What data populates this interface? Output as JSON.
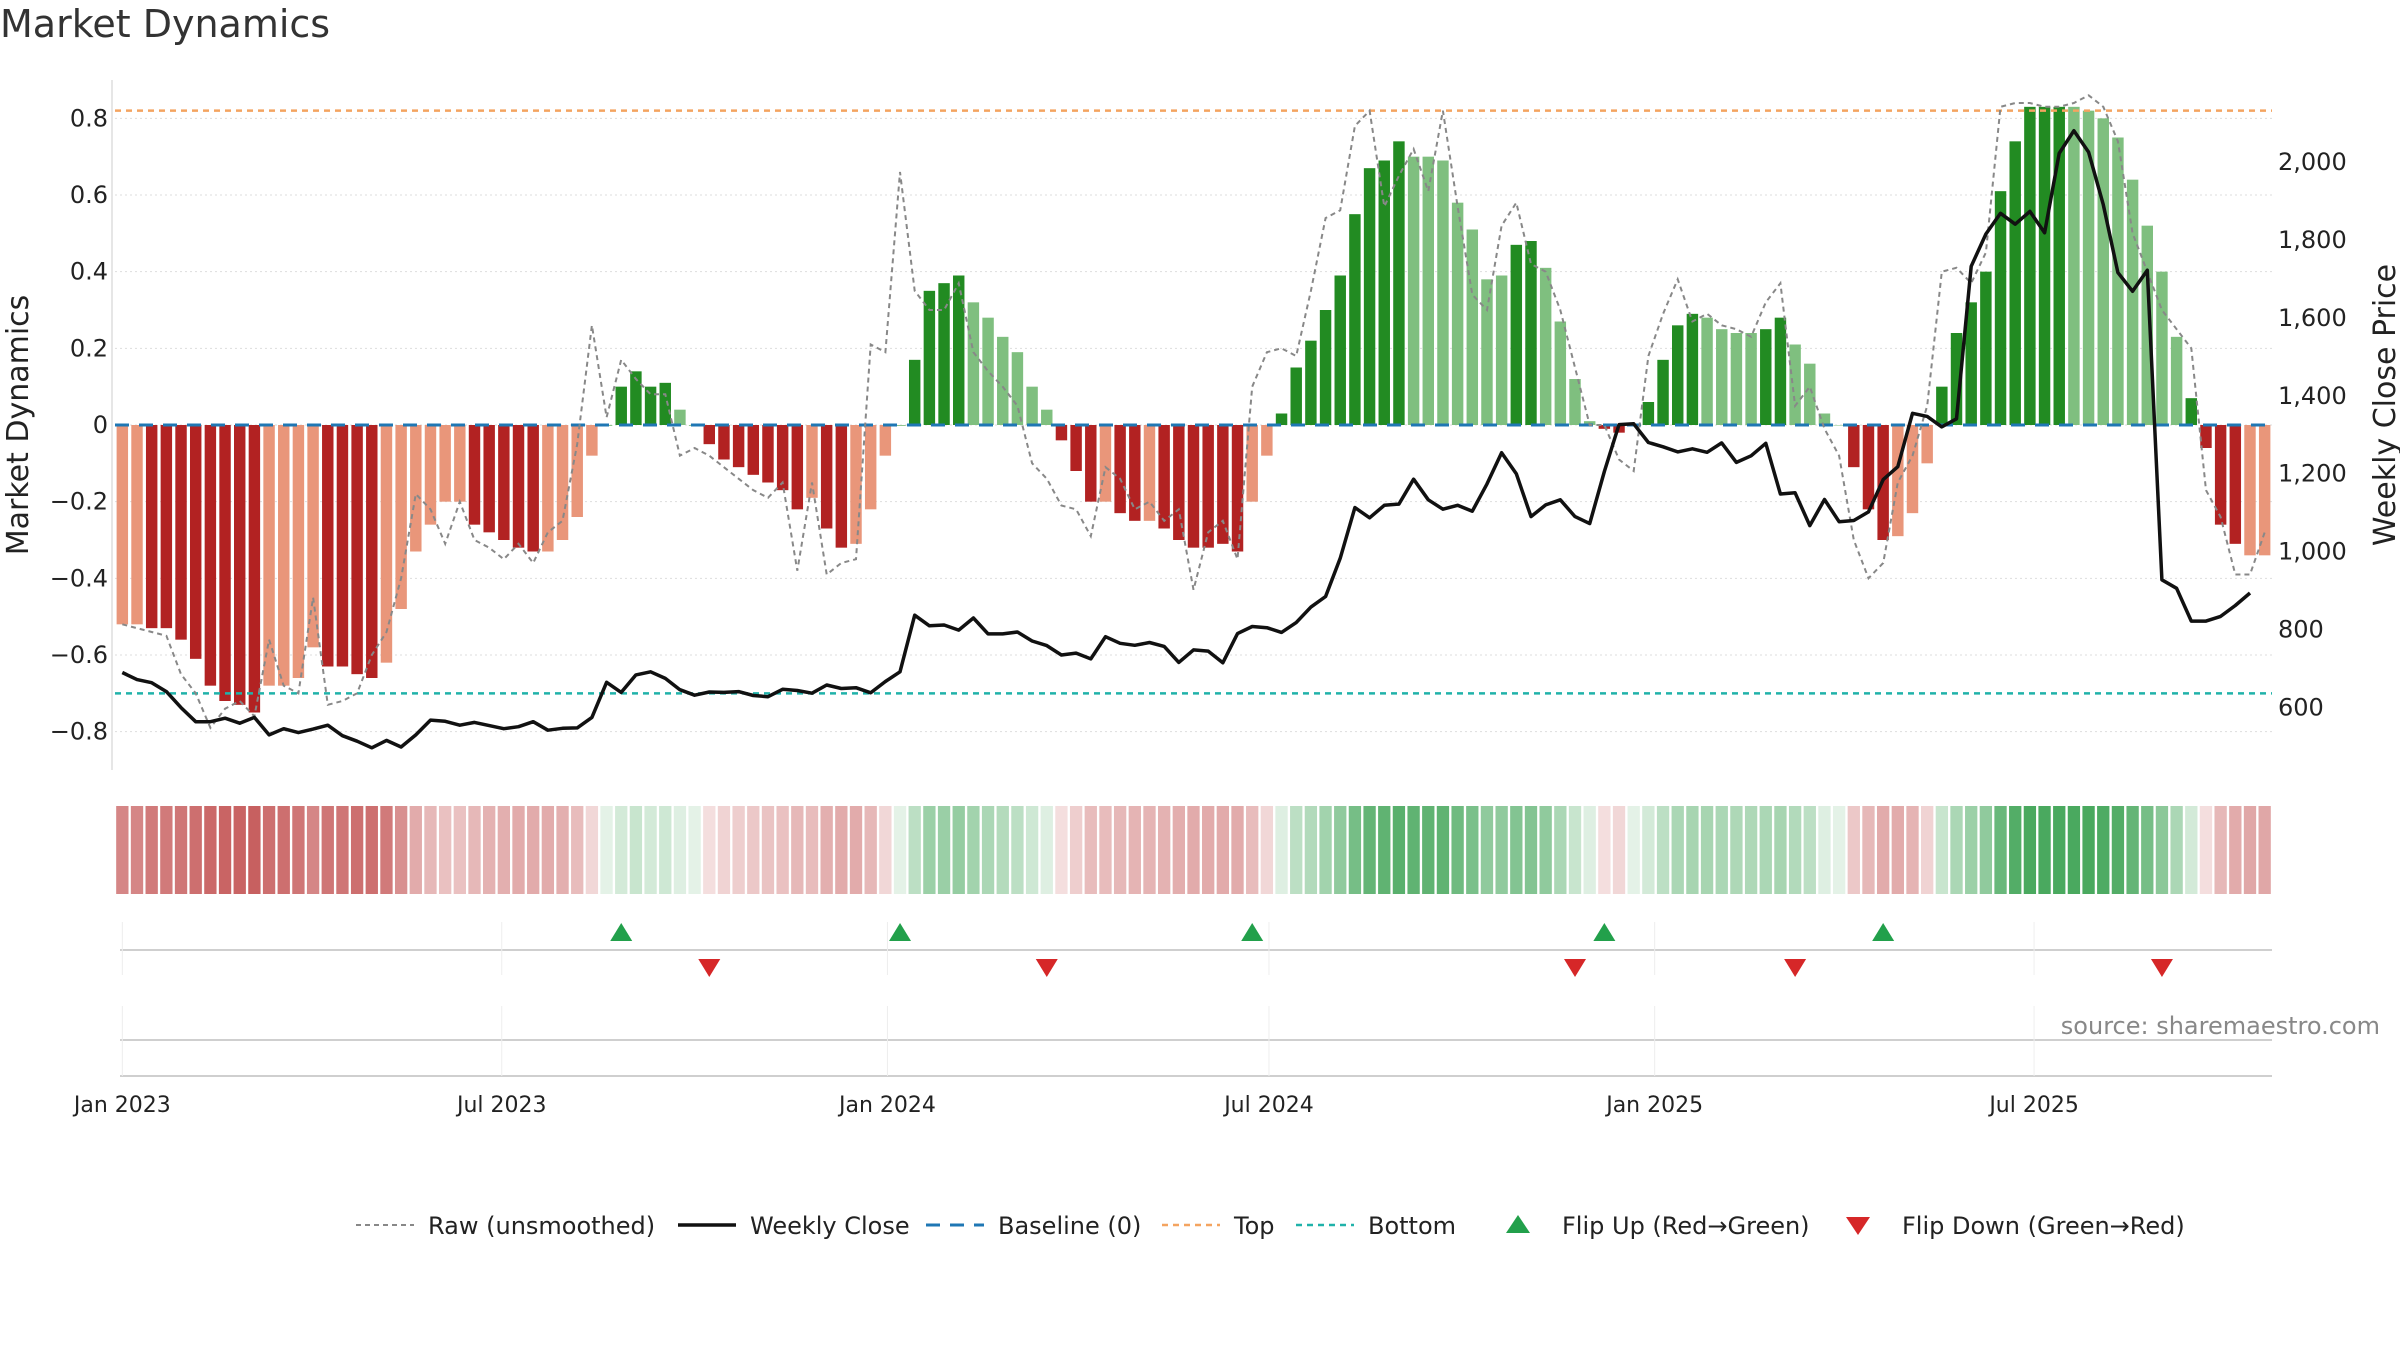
{
  "title": "Market Dynamics",
  "source": "source: sharemaestro.com",
  "colors": {
    "strong_green": "#228b22",
    "weak_green": "#7fbf7f",
    "strong_red": "#b22222",
    "weak_red": "#e9967a",
    "raw": "#888888",
    "close": "#111111",
    "baseline": "#1f77b4",
    "top": "#f4a460",
    "bottom": "#20b2aa",
    "flip_up": "#22a04b",
    "flip_down": "#d62728"
  },
  "chart_data": {
    "type": "bar",
    "title": "Market Dynamics",
    "ylabel": "Market Dynamics",
    "y2label": "Weekly Close Price",
    "ylim": [
      -0.9,
      0.9
    ],
    "y2lim": [
      440,
      2210
    ],
    "yticks": [
      "−0.8",
      "−0.6",
      "−0.4",
      "−0.2",
      "0",
      "0.2",
      "0.4",
      "0.6",
      "0.8"
    ],
    "y2ticks": [
      "600",
      "800",
      "1,000",
      "1,200",
      "1,400",
      "1,600",
      "1,800",
      "2,000"
    ],
    "xticks": [
      "Jan 2023",
      "Jul 2023",
      "Jan 2024",
      "Jul 2024",
      "Jan 2025",
      "Jul 2025"
    ],
    "top_level": 0.82,
    "bottom_level": -0.7,
    "baseline": 0,
    "weeks_start": "2023-01-01",
    "bar_values": [
      -0.52,
      -0.52,
      -0.53,
      -0.53,
      -0.56,
      -0.61,
      -0.68,
      -0.72,
      -0.73,
      -0.75,
      -0.68,
      -0.68,
      -0.66,
      -0.58,
      -0.63,
      -0.63,
      -0.65,
      -0.66,
      -0.62,
      -0.48,
      -0.33,
      -0.26,
      -0.2,
      -0.2,
      -0.26,
      -0.28,
      -0.3,
      -0.32,
      -0.33,
      -0.33,
      -0.3,
      -0.24,
      -0.08,
      0.0,
      0.1,
      0.14,
      0.1,
      0.11,
      0.04,
      0.0,
      -0.05,
      -0.09,
      -0.11,
      -0.13,
      -0.15,
      -0.17,
      -0.22,
      -0.19,
      -0.27,
      -0.32,
      -0.31,
      -0.22,
      -0.08,
      0.0,
      0.17,
      0.35,
      0.37,
      0.39,
      0.32,
      0.28,
      0.23,
      0.19,
      0.1,
      0.04,
      -0.04,
      -0.12,
      -0.2,
      -0.2,
      -0.23,
      -0.25,
      -0.25,
      -0.27,
      -0.3,
      -0.32,
      -0.32,
      -0.31,
      -0.33,
      -0.2,
      -0.08,
      0.03,
      0.15,
      0.22,
      0.3,
      0.39,
      0.55,
      0.67,
      0.69,
      0.74,
      0.7,
      0.7,
      0.69,
      0.58,
      0.51,
      0.38,
      0.39,
      0.47,
      0.48,
      0.41,
      0.27,
      0.12,
      0.01,
      -0.01,
      -0.02,
      0.0,
      0.06,
      0.17,
      0.26,
      0.29,
      0.28,
      0.25,
      0.24,
      0.24,
      0.25,
      0.28,
      0.21,
      0.16,
      0.03,
      0.0,
      -0.11,
      -0.22,
      -0.3,
      -0.29,
      -0.23,
      -0.1,
      0.1,
      0.24,
      0.32,
      0.4,
      0.61,
      0.74,
      0.83,
      0.83,
      0.83,
      0.83,
      0.82,
      0.8,
      0.75,
      0.64,
      0.52,
      0.4,
      0.23,
      0.07,
      -0.06,
      -0.26,
      -0.31,
      -0.34,
      -0.34
    ],
    "bar_strength": [
      "weak",
      "weak",
      "strong",
      "strong",
      "strong",
      "strong",
      "strong",
      "strong",
      "strong",
      "strong",
      "weak",
      "weak",
      "weak",
      "weak",
      "strong",
      "strong",
      "strong",
      "strong",
      "weak",
      "weak",
      "weak",
      "weak",
      "weak",
      "weak",
      "strong",
      "strong",
      "strong",
      "strong",
      "strong",
      "weak",
      "weak",
      "weak",
      "weak",
      "strong",
      "strong",
      "strong",
      "strong",
      "strong",
      "weak",
      "strong",
      "strong",
      "strong",
      "strong",
      "strong",
      "strong",
      "strong",
      "strong",
      "weak",
      "strong",
      "strong",
      "weak",
      "weak",
      "weak",
      "strong",
      "strong",
      "strong",
      "strong",
      "strong",
      "weak",
      "weak",
      "weak",
      "weak",
      "weak",
      "weak",
      "strong",
      "strong",
      "strong",
      "weak",
      "strong",
      "strong",
      "weak",
      "strong",
      "strong",
      "strong",
      "strong",
      "strong",
      "strong",
      "weak",
      "weak",
      "strong",
      "strong",
      "strong",
      "strong",
      "strong",
      "strong",
      "strong",
      "strong",
      "strong",
      "weak",
      "weak",
      "weak",
      "weak",
      "weak",
      "weak",
      "weak",
      "strong",
      "strong",
      "weak",
      "weak",
      "weak",
      "weak",
      "strong",
      "strong",
      "strong",
      "strong",
      "strong",
      "strong",
      "strong",
      "weak",
      "weak",
      "weak",
      "weak",
      "strong",
      "strong",
      "weak",
      "weak",
      "weak",
      "weak",
      "strong",
      "strong",
      "strong",
      "weak",
      "weak",
      "weak",
      "strong",
      "strong",
      "strong",
      "strong",
      "strong",
      "strong",
      "strong",
      "strong",
      "strong",
      "weak",
      "weak",
      "weak",
      "weak",
      "weak",
      "weak",
      "weak",
      "weak",
      "strong",
      "strong",
      "strong",
      "strong",
      "weak"
    ],
    "raw_values": [
      -0.52,
      -0.53,
      -0.54,
      -0.55,
      -0.65,
      -0.7,
      -0.79,
      -0.74,
      -0.72,
      -0.76,
      -0.56,
      -0.68,
      -0.7,
      -0.45,
      -0.73,
      -0.72,
      -0.7,
      -0.6,
      -0.54,
      -0.4,
      -0.18,
      -0.22,
      -0.31,
      -0.2,
      -0.3,
      -0.32,
      -0.35,
      -0.31,
      -0.36,
      -0.28,
      -0.25,
      -0.05,
      0.26,
      0.02,
      0.17,
      0.12,
      0.08,
      0.08,
      -0.08,
      -0.06,
      -0.08,
      -0.11,
      -0.14,
      -0.17,
      -0.19,
      -0.15,
      -0.38,
      -0.15,
      -0.39,
      -0.36,
      -0.35,
      0.21,
      0.19,
      0.66,
      0.35,
      0.3,
      0.3,
      0.37,
      0.19,
      0.14,
      0.1,
      0.05,
      -0.1,
      -0.14,
      -0.21,
      -0.22,
      -0.29,
      -0.11,
      -0.14,
      -0.22,
      -0.2,
      -0.25,
      -0.22,
      -0.43,
      -0.28,
      -0.25,
      -0.35,
      0.1,
      0.19,
      0.2,
      0.18,
      0.35,
      0.54,
      0.56,
      0.78,
      0.82,
      0.57,
      0.65,
      0.72,
      0.61,
      0.82,
      0.57,
      0.34,
      0.3,
      0.52,
      0.58,
      0.42,
      0.4,
      0.3,
      0.15,
      0.0,
      0.0,
      -0.09,
      -0.12,
      0.18,
      0.29,
      0.38,
      0.27,
      0.29,
      0.26,
      0.25,
      0.23,
      0.32,
      0.37,
      0.05,
      0.1,
      -0.01,
      -0.08,
      -0.3,
      -0.4,
      -0.36,
      -0.15,
      -0.08,
      0.05,
      0.4,
      0.41,
      0.37,
      0.45,
      0.83,
      0.84,
      0.84,
      0.83,
      0.83,
      0.84,
      0.86,
      0.83,
      0.74,
      0.5,
      0.4,
      0.3,
      0.25,
      0.2,
      -0.17,
      -0.24,
      -0.39,
      -0.39,
      -0.28
    ],
    "close_values": [
      690,
      672,
      664,
      641,
      600,
      564,
      564,
      573,
      560,
      575,
      530,
      546,
      536,
      545,
      555,
      528,
      514,
      497,
      516,
      499,
      530,
      568,
      565,
      555,
      562,
      554,
      546,
      551,
      564,
      542,
      547,
      548,
      575,
      665,
      639,
      684,
      692,
      675,
      646,
      632,
      640,
      639,
      641,
      631,
      628,
      647,
      644,
      637,
      658,
      649,
      651,
      638,
      667,
      692,
      837,
      810,
      812,
      799,
      830,
      789,
      789,
      794,
      771,
      759,
      735,
      740,
      725,
      782,
      765,
      760,
      767,
      757,
      716,
      748,
      745,
      715,
      790,
      808,
      805,
      793,
      818,
      858,
      885,
      983,
      1113,
      1087,
      1119,
      1122,
      1186,
      1133,
      1109,
      1119,
      1104,
      1174,
      1254,
      1200,
      1090,
      1120,
      1133,
      1090,
      1072,
      1206,
      1326,
      1328,
      1280,
      1269,
      1256,
      1264,
      1255,
      1279,
      1229,
      1246,
      1278,
      1148,
      1151,
      1067,
      1134,
      1077,
      1080,
      1102,
      1185,
      1218,
      1355,
      1347,
      1320,
      1341,
      1732,
      1815,
      1868,
      1840,
      1873,
      1818,
      2022,
      2080,
      2025,
      1890,
      1716,
      1668,
      1722,
      928,
      906,
      822,
      822,
      834,
      862,
      894
    ],
    "regime_intensity": [
      0.55,
      0.55,
      0.6,
      0.6,
      0.62,
      0.65,
      0.68,
      0.7,
      0.7,
      0.72,
      0.65,
      0.65,
      0.62,
      0.55,
      0.62,
      0.62,
      0.65,
      0.65,
      0.6,
      0.5,
      0.38,
      0.32,
      0.28,
      0.28,
      0.32,
      0.35,
      0.36,
      0.38,
      0.38,
      0.38,
      0.36,
      0.3,
      0.18,
      0.12,
      0.2,
      0.25,
      0.2,
      0.22,
      0.15,
      0.12,
      0.15,
      0.2,
      0.22,
      0.25,
      0.27,
      0.28,
      0.32,
      0.3,
      0.36,
      0.38,
      0.38,
      0.32,
      0.18,
      0.12,
      0.3,
      0.45,
      0.46,
      0.48,
      0.42,
      0.38,
      0.34,
      0.3,
      0.22,
      0.15,
      0.15,
      0.22,
      0.3,
      0.3,
      0.32,
      0.34,
      0.34,
      0.35,
      0.37,
      0.38,
      0.38,
      0.38,
      0.38,
      0.3,
      0.18,
      0.15,
      0.3,
      0.35,
      0.42,
      0.5,
      0.62,
      0.7,
      0.72,
      0.75,
      0.72,
      0.72,
      0.72,
      0.65,
      0.6,
      0.5,
      0.5,
      0.56,
      0.56,
      0.5,
      0.38,
      0.25,
      0.15,
      0.15,
      0.18,
      0.12,
      0.2,
      0.3,
      0.38,
      0.4,
      0.4,
      0.38,
      0.37,
      0.37,
      0.38,
      0.4,
      0.35,
      0.3,
      0.15,
      0.12,
      0.25,
      0.32,
      0.38,
      0.38,
      0.34,
      0.2,
      0.25,
      0.38,
      0.45,
      0.5,
      0.68,
      0.78,
      0.82,
      0.82,
      0.82,
      0.82,
      0.82,
      0.8,
      0.78,
      0.7,
      0.62,
      0.52,
      0.38,
      0.2,
      0.15,
      0.32,
      0.38,
      0.4,
      0.4
    ],
    "flip_up_weeks": [
      34,
      53,
      77,
      101,
      120
    ],
    "flip_down_weeks": [
      40,
      63,
      99,
      114,
      139
    ],
    "legend": [
      {
        "label": "Raw (unsmoothed)",
        "style": "raw"
      },
      {
        "label": "Weekly Close",
        "style": "close"
      },
      {
        "label": "Baseline (0)",
        "style": "baseline"
      },
      {
        "label": "Top",
        "style": "top"
      },
      {
        "label": "Bottom",
        "style": "bottom"
      },
      {
        "label": "Flip Up (Red→Green)",
        "style": "flip_up"
      },
      {
        "label": "Flip Down (Green→Red)",
        "style": "flip_down"
      }
    ]
  }
}
